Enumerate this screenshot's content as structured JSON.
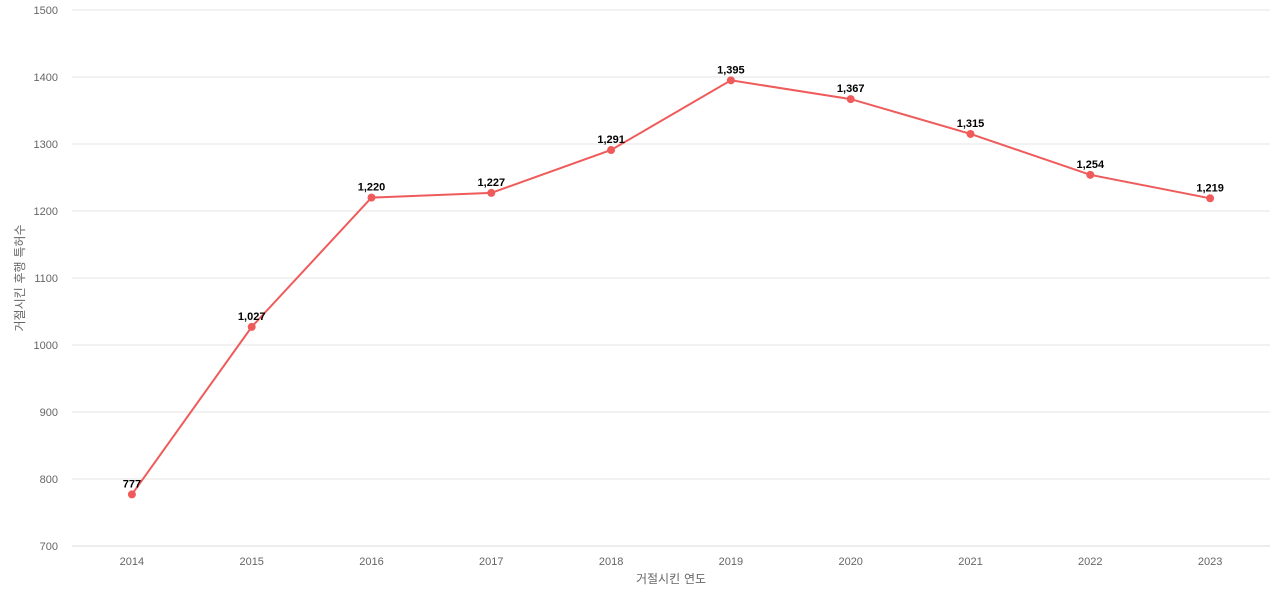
{
  "chart_data": {
    "type": "line",
    "title": "",
    "xlabel": "거절시킨 연도",
    "ylabel": "거절시킨 후행 특허수",
    "categories": [
      "2014",
      "2015",
      "2016",
      "2017",
      "2018",
      "2019",
      "2020",
      "2021",
      "2022",
      "2023"
    ],
    "series": [
      {
        "color": "#ef5b5b",
        "values": [
          777,
          1027,
          1220,
          1227,
          1291,
          1395,
          1367,
          1315,
          1254,
          1219
        ],
        "data_labels": [
          "777",
          "1,027",
          "1,220",
          "1,227",
          "1,291",
          "1,395",
          "1,367",
          "1,315",
          "1,254",
          "1,219"
        ]
      }
    ],
    "ylim": [
      700,
      1500
    ],
    "yticks": [
      700,
      800,
      900,
      1000,
      1100,
      1200,
      1300,
      1400,
      1500
    ],
    "grid": true,
    "legend": "none"
  }
}
